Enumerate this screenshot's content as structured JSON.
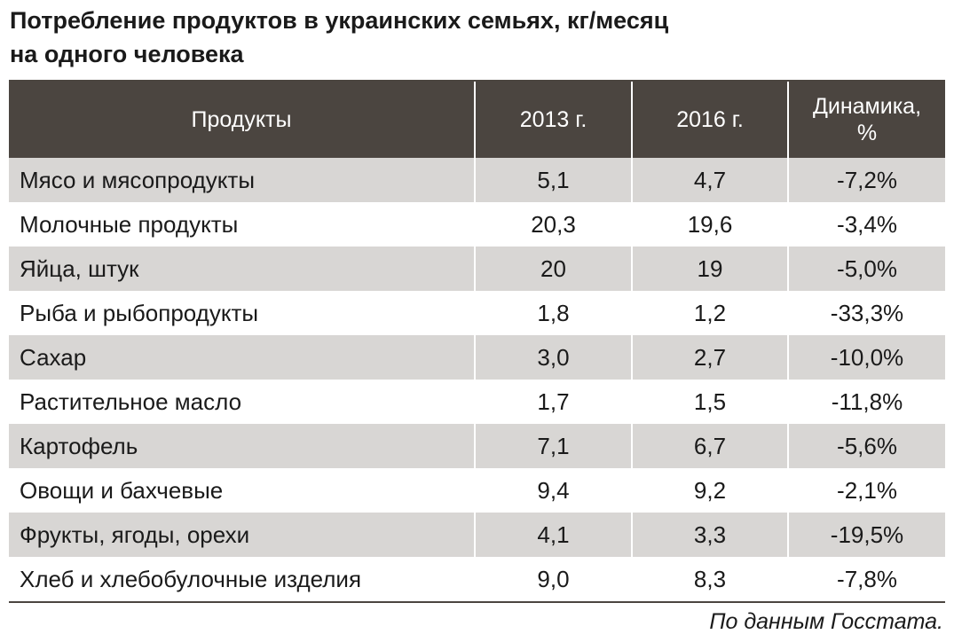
{
  "chart_data": {
    "type": "table",
    "title": "Потребление продуктов в украинских семьях, кг/месяц\nна  одного человека",
    "columns": [
      "Продукты",
      "2013 г.",
      "2016 г.",
      "Динамика,\n%"
    ],
    "rows": [
      {
        "product": "Мясо и мясопродукты",
        "y2013": "5,1",
        "y2016": "4,7",
        "change": "-7,2%"
      },
      {
        "product": "Молочные продукты",
        "y2013": "20,3",
        "y2016": "19,6",
        "change": "-3,4%"
      },
      {
        "product": "Яйца, штук",
        "y2013": "20",
        "y2016": "19",
        "change": "-5,0%"
      },
      {
        "product": "Рыба и рыбопродукты",
        "y2013": "1,8",
        "y2016": "1,2",
        "change": "-33,3%"
      },
      {
        "product": "Сахар",
        "y2013": "3,0",
        "y2016": "2,7",
        "change": "-10,0%"
      },
      {
        "product": "Растительное масло",
        "y2013": "1,7",
        "y2016": "1,5",
        "change": "-11,8%"
      },
      {
        "product": "Картофель",
        "y2013": "7,1",
        "y2016": "6,7",
        "change": "-5,6%"
      },
      {
        "product": "Овощи и бахчевые",
        "y2013": "9,4",
        "y2016": "9,2",
        "change": "-2,1%"
      },
      {
        "product": "Фрукты, ягоды, орехи",
        "y2013": "4,1",
        "y2016": "3,3",
        "change": "-19,5%"
      },
      {
        "product": "Хлеб и хлебобулочные изделия",
        "y2013": "9,0",
        "y2016": "8,3",
        "change": "-7,8%"
      }
    ],
    "source": "По данным Госстата."
  },
  "colors": {
    "header_bg": "#4b4540",
    "header_text": "#ffffff",
    "row_shade": "#d8d6d4",
    "row_plain": "#ffffff"
  }
}
